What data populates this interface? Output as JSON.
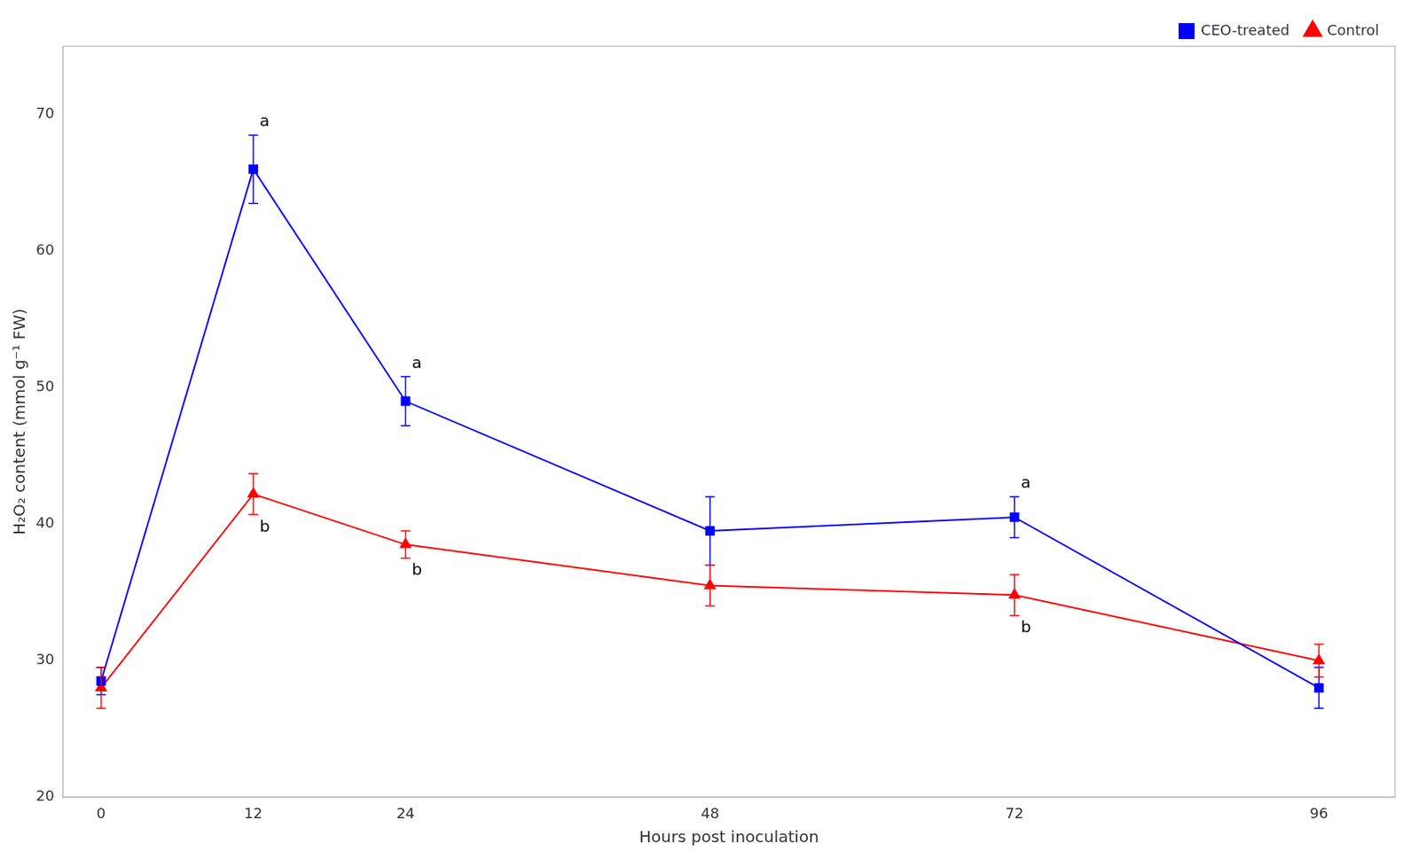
{
  "chart_data": {
    "type": "line",
    "x": [
      0,
      12,
      24,
      48,
      72,
      96
    ],
    "series": [
      {
        "name": "CEO-treated",
        "color": "#0000FF",
        "marker": "square",
        "line_style": "solid",
        "values": [
          28.5,
          66.0,
          49.0,
          39.5,
          40.5,
          28.0
        ],
        "errors": [
          1.0,
          2.5,
          1.8,
          2.5,
          1.5,
          1.5
        ]
      },
      {
        "name": "Control",
        "color": "#FF0000",
        "marker": "triangle",
        "line_style": "solid",
        "values": [
          28.0,
          42.2,
          38.5,
          35.5,
          34.8,
          30.0
        ],
        "errors": [
          1.5,
          1.5,
          1.0,
          1.5,
          1.5,
          1.2
        ]
      }
    ],
    "xlabel": "Hours post inoculation",
    "ylabel": "H₂O₂ content (mmol g⁻¹ FW)",
    "xlim": [
      -3,
      102
    ],
    "xticks": [
      0,
      12,
      24,
      48,
      72,
      96
    ],
    "ylim": [
      20,
      75
    ],
    "yticks": [
      20,
      30,
      40,
      50,
      60,
      70
    ],
    "annotations": [
      {
        "text": "a",
        "x": 12,
        "series": "CEO-treated",
        "anchor": "above"
      },
      {
        "text": "a",
        "x": 24,
        "series": "CEO-treated",
        "anchor": "above"
      },
      {
        "text": "a",
        "x": 72,
        "series": "CEO-treated",
        "anchor": "above"
      },
      {
        "text": "b",
        "x": 12,
        "series": "Control",
        "anchor": "below"
      },
      {
        "text": "b",
        "x": 24,
        "series": "Control",
        "anchor": "below"
      },
      {
        "text": "b",
        "x": 72,
        "series": "Control",
        "anchor": "below"
      }
    ],
    "legend": "upper right",
    "grid": false
  }
}
